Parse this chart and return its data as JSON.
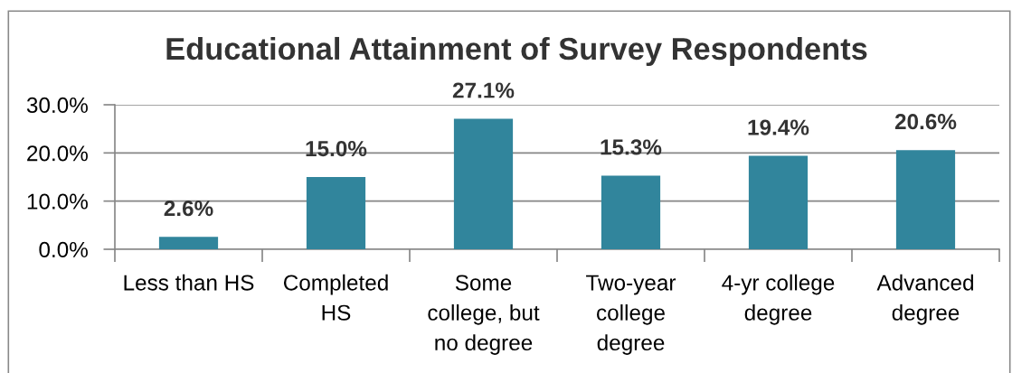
{
  "chart_data": {
    "type": "bar",
    "title": "Educational Attainment of Survey Respondents",
    "categories": [
      "Less than HS",
      "Completed\nHS",
      "Some\ncollege, but\nno degree",
      "Two-year\ncollege\ndegree",
      "4-yr college\ndegree",
      "Advanced\ndegree"
    ],
    "values": [
      2.6,
      15.0,
      27.1,
      15.3,
      19.4,
      20.6
    ],
    "color": "#31859c",
    "value_labels": [
      "2.6%",
      "15.0%",
      "27.1%",
      "15.3%",
      "19.4%",
      "20.6%"
    ],
    "ylim": [
      0,
      30
    ],
    "yticks": [
      {
        "value": 0,
        "label": "0.0%"
      },
      {
        "value": 10,
        "label": "10.0%"
      },
      {
        "value": 20,
        "label": "20.0%"
      },
      {
        "value": 30,
        "label": "30.0%"
      }
    ],
    "grid": "y"
  }
}
